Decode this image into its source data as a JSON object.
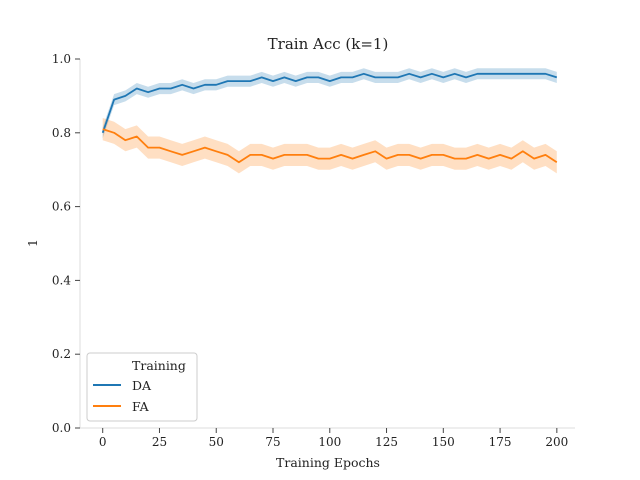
{
  "chart_data": {
    "type": "line",
    "title": "Train Acc (k=1)",
    "xlabel": "Training Epochs",
    "ylabel": "1",
    "xlim": [
      -10,
      208
    ],
    "ylim": [
      0,
      1.0
    ],
    "xticks": [
      0,
      25,
      50,
      75,
      100,
      125,
      150,
      175,
      200
    ],
    "yticks": [
      0.0,
      0.2,
      0.4,
      0.6,
      0.8,
      1.0
    ],
    "xtick_labels": [
      "0",
      "25",
      "50",
      "75",
      "100",
      "125",
      "150",
      "175",
      "200"
    ],
    "ytick_labels": [
      "0.0",
      "0.2",
      "0.4",
      "0.6",
      "0.8",
      "1.0"
    ],
    "grid": false,
    "legend": {
      "title": "Training",
      "placement": "lower-left",
      "entries": [
        "DA",
        "FA"
      ]
    },
    "x_sample_step": 5,
    "series": [
      {
        "name": "DA",
        "color": "#1f77b4",
        "band_halfwidth": 0.015,
        "values": [
          0.8,
          0.89,
          0.9,
          0.92,
          0.91,
          0.92,
          0.92,
          0.93,
          0.92,
          0.93,
          0.93,
          0.94,
          0.94,
          0.94,
          0.95,
          0.94,
          0.95,
          0.94,
          0.95,
          0.95,
          0.94,
          0.95,
          0.95,
          0.96,
          0.95,
          0.95,
          0.95,
          0.96,
          0.95,
          0.96,
          0.95,
          0.96,
          0.95,
          0.96,
          0.96,
          0.96,
          0.96,
          0.96,
          0.96,
          0.96,
          0.95
        ]
      },
      {
        "name": "FA",
        "color": "#ff7f0e",
        "band_halfwidth": 0.03,
        "values": [
          0.81,
          0.8,
          0.78,
          0.79,
          0.76,
          0.76,
          0.75,
          0.74,
          0.75,
          0.76,
          0.75,
          0.74,
          0.72,
          0.74,
          0.74,
          0.73,
          0.74,
          0.74,
          0.74,
          0.73,
          0.73,
          0.74,
          0.73,
          0.74,
          0.75,
          0.73,
          0.74,
          0.74,
          0.73,
          0.74,
          0.74,
          0.73,
          0.73,
          0.74,
          0.73,
          0.74,
          0.73,
          0.75,
          0.73,
          0.74,
          0.72
        ]
      }
    ]
  }
}
